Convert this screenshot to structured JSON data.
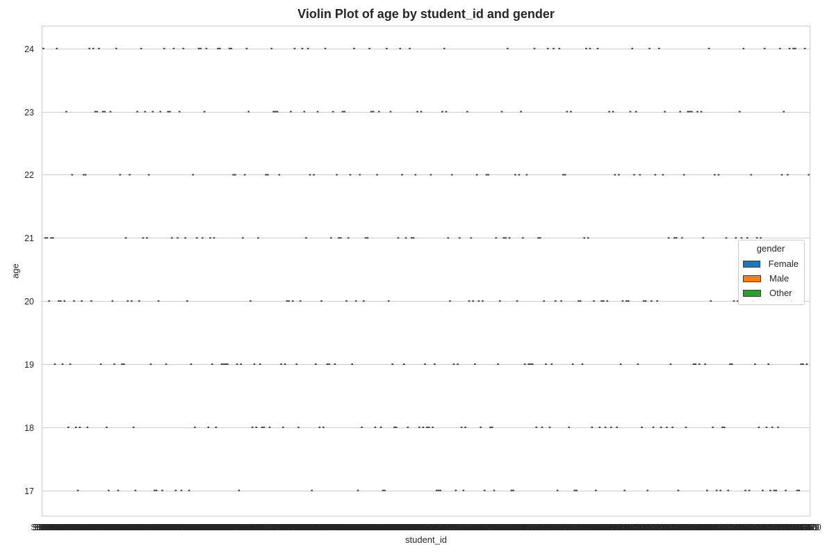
{
  "chart_data": {
    "type": "violin",
    "title": "Violin Plot of age by student_id and gender",
    "xlabel": "student_id",
    "ylabel": "age",
    "y_ticks": [
      17,
      18,
      19,
      20,
      21,
      22,
      23,
      24
    ],
    "ylim": [
      16.6,
      24.35
    ],
    "x_category_count": 400,
    "x_tick_labels_overlapping": true,
    "grid": "horizontal",
    "style": "whitegrid",
    "legend": {
      "title": "gender",
      "position": "center-right",
      "entries": [
        {
          "name": "Female",
          "color": "#1f77b4"
        },
        {
          "name": "Male",
          "color": "#ff7f0e"
        },
        {
          "name": "Other",
          "color": "#2ca02c"
        }
      ]
    },
    "note": "Each student_id has a single age value, so every violin collapses to a short dash at that age."
  }
}
